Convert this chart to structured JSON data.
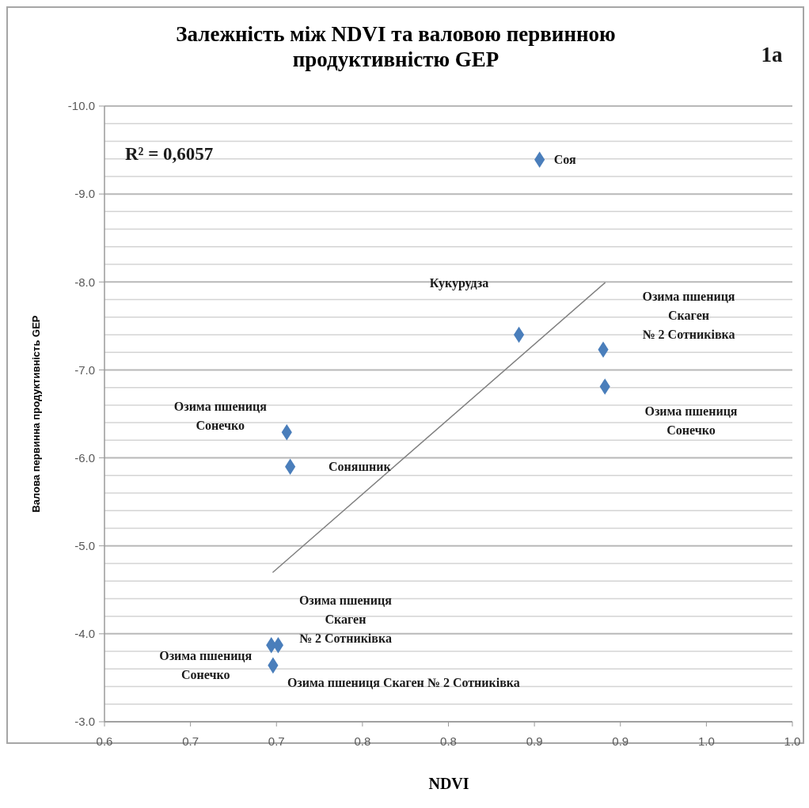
{
  "chart_data": {
    "type": "scatter",
    "title": "Залежність між NDVI та валовою первинною продуктивністю GEP",
    "xlabel": "NDVI",
    "ylabel": "Валова первинна продуктивність GEP",
    "x": [
      0.853,
      0.841,
      0.89,
      0.891,
      0.706,
      0.708,
      0.697,
      0.701,
      0.698
    ],
    "series": [
      {
        "color": "#4a7ebb",
        "values": [
          -9.39,
          -7.4,
          -7.23,
          -6.81,
          -6.29,
          -5.9,
          -3.87,
          -3.87,
          -3.64
        ]
      },
      {
        "type": "line",
        "marker": "none",
        "color": "#808080",
        "x": [
          0.698,
          0.891
        ],
        "values": [
          -4.7,
          -7.99
        ]
      }
    ],
    "marker": "diamond",
    "xlim": [
      0.6,
      1.0
    ],
    "xticks": [
      0.6,
      {
        "value": 0.65,
        "label": "0.7"
      },
      {
        "value": 0.7,
        "label": "0.7"
      },
      {
        "value": 0.75,
        "label": "0.8"
      },
      {
        "value": 0.8,
        "label": "0.8"
      },
      {
        "value": 0.85,
        "label": "0.9"
      },
      {
        "value": 0.9,
        "label": "0.9"
      },
      {
        "value": 0.95,
        "label": "1.0"
      },
      {
        "value": 1.0,
        "label": "1.0"
      }
    ],
    "ylim": [
      -3,
      -10
    ],
    "yticks": [
      {
        "value": -10,
        "label": "-10.0"
      },
      {
        "value": -9.8,
        "label": null
      },
      {
        "value": -9.6,
        "label": null
      },
      {
        "value": -9.4,
        "label": null
      },
      {
        "value": -9.2,
        "label": null
      },
      {
        "value": -9,
        "label": "-9.0"
      },
      {
        "value": -8.8,
        "label": null
      },
      {
        "value": -8.6,
        "label": null
      },
      {
        "value": -8.4,
        "label": null
      },
      {
        "value": -8.2,
        "label": null
      },
      {
        "value": -8,
        "label": "-8.0"
      },
      {
        "value": -7.8,
        "label": null
      },
      {
        "value": -7.6,
        "label": null
      },
      {
        "value": -7.4,
        "label": null
      },
      {
        "value": -7.2,
        "label": null
      },
      {
        "value": -7,
        "label": "-7.0"
      },
      {
        "value": -6.8,
        "label": null
      },
      {
        "value": -6.6,
        "label": null
      },
      {
        "value": -6.4,
        "label": null
      },
      {
        "value": -6.2,
        "label": null
      },
      {
        "value": -6,
        "label": "-6.0"
      },
      {
        "value": -5.8,
        "label": null
      },
      {
        "value": -5.6,
        "label": null
      },
      {
        "value": -5.4,
        "label": null
      },
      {
        "value": -5.2,
        "label": null
      },
      {
        "value": -5,
        "label": "-5.0"
      },
      {
        "value": -4.8,
        "label": null
      },
      {
        "value": -4.6,
        "label": null
      },
      {
        "value": -4.4,
        "label": null
      },
      {
        "value": -4.2,
        "label": null
      },
      {
        "value": -4,
        "label": "-4.0"
      },
      {
        "value": -3.8,
        "label": null
      },
      {
        "value": -3.6,
        "label": null
      },
      {
        "value": -3.4,
        "label": null
      },
      {
        "value": -3.2,
        "label": null
      },
      {
        "value": -3,
        "label": "-3.0"
      }
    ],
    "grid": "y",
    "annotations": [
      {
        "text": "Соя",
        "x": 0.853,
        "y": -9.39
      },
      "Кукурудза",
      "Озима пшениця Скаген № 2 Сотниківка",
      "Озима пшениця Сонечко",
      {
        "text": "Озима пшениця Сонечко",
        "x": 0.706,
        "y": -6.29
      },
      "Соняшник",
      {
        "text": "Озима пшениця Сонечко",
        "x": 0.697,
        "y": -3.87
      },
      {
        "text": "Озима пшениця Скаген № 2 Сотниківка",
        "x": 0.701,
        "y": -3.87
      },
      {
        "text": "Озима пшениця Скаген № 2 Сотниківка",
        "x": 0.698,
        "y": -3.64
      },
      "R² = 0,6057",
      "1a"
    ]
  }
}
